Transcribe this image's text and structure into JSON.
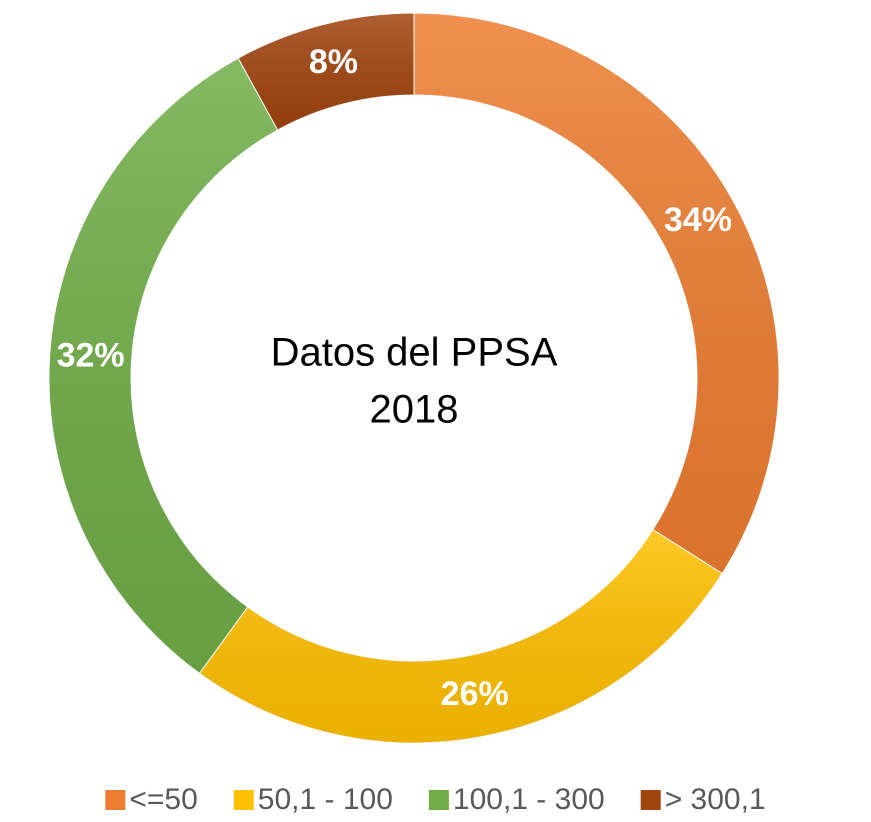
{
  "chart_data": {
    "type": "donut",
    "title_lines": [
      "Datos del PPSA",
      "2018"
    ],
    "categories": [
      "<=50",
      "50,1 - 100",
      "100,1 - 300",
      "> 300,1"
    ],
    "values": [
      34,
      26,
      32,
      8
    ],
    "value_labels": [
      "34%",
      "26%",
      "32%",
      "8%"
    ],
    "colors": [
      "#ED7D31",
      "#FFC000",
      "#70AD47",
      "#A0440E"
    ],
    "legend": "bottom"
  }
}
